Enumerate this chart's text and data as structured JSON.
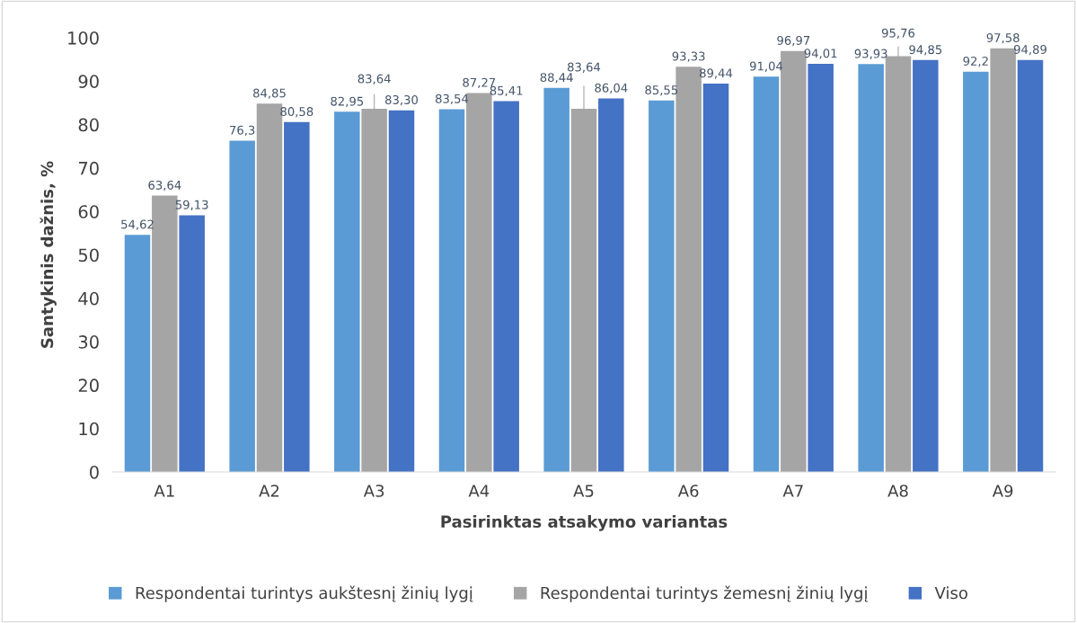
{
  "chart_data": {
    "type": "bar",
    "xlabel": "Pasirinktas atsakymo variantas",
    "ylabel": "Santykinis dažnis, %",
    "categories": [
      "A1",
      "A2",
      "A3",
      "A4",
      "A5",
      "A6",
      "A7",
      "A8",
      "A9"
    ],
    "series": [
      {
        "name": "Respondentai turintys aukštesnį žinių lygį",
        "color": "#5b9bd5",
        "values": [
          54.62,
          76.3,
          82.95,
          83.54,
          88.44,
          85.55,
          91.04,
          93.93,
          92.2
        ],
        "value_labels": [
          "54,62",
          "76,3",
          "82,95",
          "83,54",
          "88,44",
          "85,55",
          "91,04",
          "93,93",
          "92,2"
        ]
      },
      {
        "name": "Respondentai turintys žemesnį žinių lygį",
        "color": "#a5a5a5",
        "values": [
          63.64,
          84.85,
          83.64,
          87.27,
          83.64,
          93.33,
          96.97,
          95.76,
          97.58
        ],
        "value_labels": [
          "63,64",
          "84,85",
          "83,64",
          "87,27",
          "83,64",
          "93,33",
          "96,97",
          "95,76",
          "97,58"
        ]
      },
      {
        "name": "Viso",
        "color": "#4472c4",
        "values": [
          59.13,
          80.58,
          83.3,
          85.41,
          86.04,
          89.44,
          94.01,
          94.85,
          94.89
        ],
        "value_labels": [
          "59,13",
          "80,58",
          "83,30",
          "85,41",
          "86,04",
          "89,44",
          "94,01",
          "94,85",
          "94,89"
        ]
      }
    ],
    "ylim": [
      0,
      100
    ],
    "yticks": [
      0,
      10,
      20,
      30,
      40,
      50,
      60,
      70,
      80,
      90,
      100
    ],
    "grid": false,
    "legend": "bottom"
  }
}
